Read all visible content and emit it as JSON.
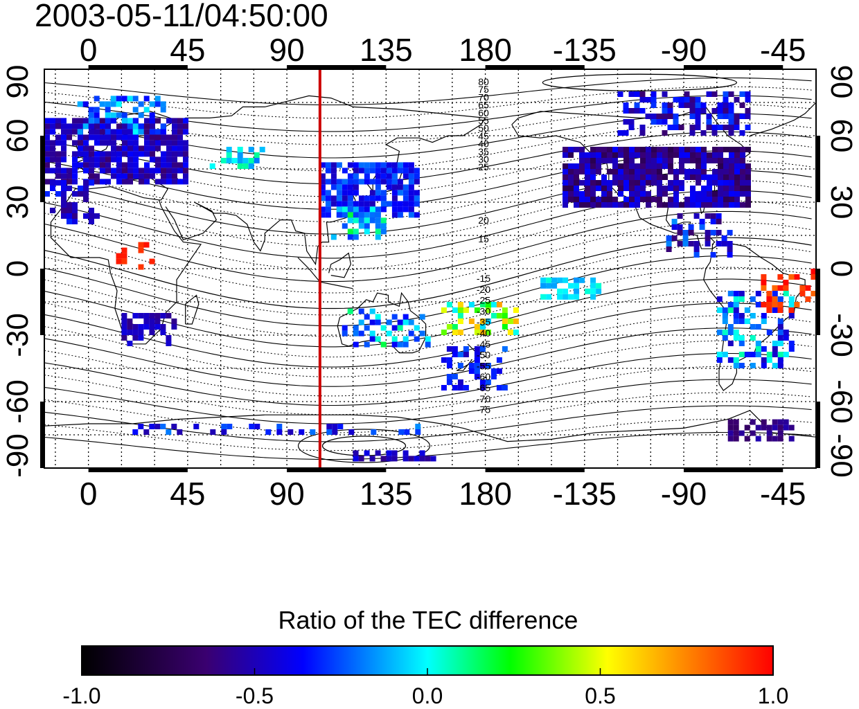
{
  "timestamp": "2003-05-11/04:50:00",
  "map": {
    "lon_top_labels": [
      "0",
      "45",
      "90",
      "135",
      "180",
      "-135",
      "-90",
      "-45"
    ],
    "lon_bottom_labels": [
      "0",
      "45",
      "90",
      "135",
      "180",
      "-135",
      "-90",
      "-45"
    ],
    "lat_left_labels": [
      "90",
      "60",
      "30",
      "0",
      "-30",
      "-60",
      "-90"
    ],
    "lat_right_labels": [
      "90",
      "60",
      "30",
      "0",
      "-30",
      "-60",
      "-90"
    ],
    "lon_tick_values": [
      0,
      45,
      90,
      135,
      180,
      225,
      270,
      315
    ],
    "lat_tick_values": [
      90,
      60,
      30,
      0,
      -30,
      -60,
      -90
    ],
    "lon_range": [
      -20,
      330
    ],
    "lat_range": [
      -90,
      90
    ],
    "grid_lon_step": 15,
    "grid_lat_step": 15,
    "red_line_lon": 105,
    "contour_labels_north": [
      "80",
      "75",
      "70",
      "65",
      "60",
      "55",
      "50",
      "45",
      "40",
      "35",
      "30",
      "25",
      "20",
      "15"
    ],
    "contour_labels_south": [
      "-15",
      "-20",
      "-25",
      "-30",
      "-35",
      "-40",
      "-45",
      "-50",
      "-55",
      "-60",
      "-65",
      "-70",
      "-75"
    ]
  },
  "colorbar": {
    "title": "Ratio of the TEC difference",
    "tick_labels": [
      "-1.0",
      "-0.5",
      "0.0",
      "0.5",
      "1.0"
    ],
    "tick_values": [
      -1.0,
      -0.5,
      0.0,
      0.5,
      1.0
    ],
    "range": [
      -1.0,
      1.0
    ],
    "stops": [
      "#000000",
      "#3a0070",
      "#0000ff",
      "#00ffff",
      "#00ff00",
      "#ffff00",
      "#ff0000"
    ]
  },
  "colors": {
    "red_line": "#cc0000",
    "coast": "#000000"
  }
}
